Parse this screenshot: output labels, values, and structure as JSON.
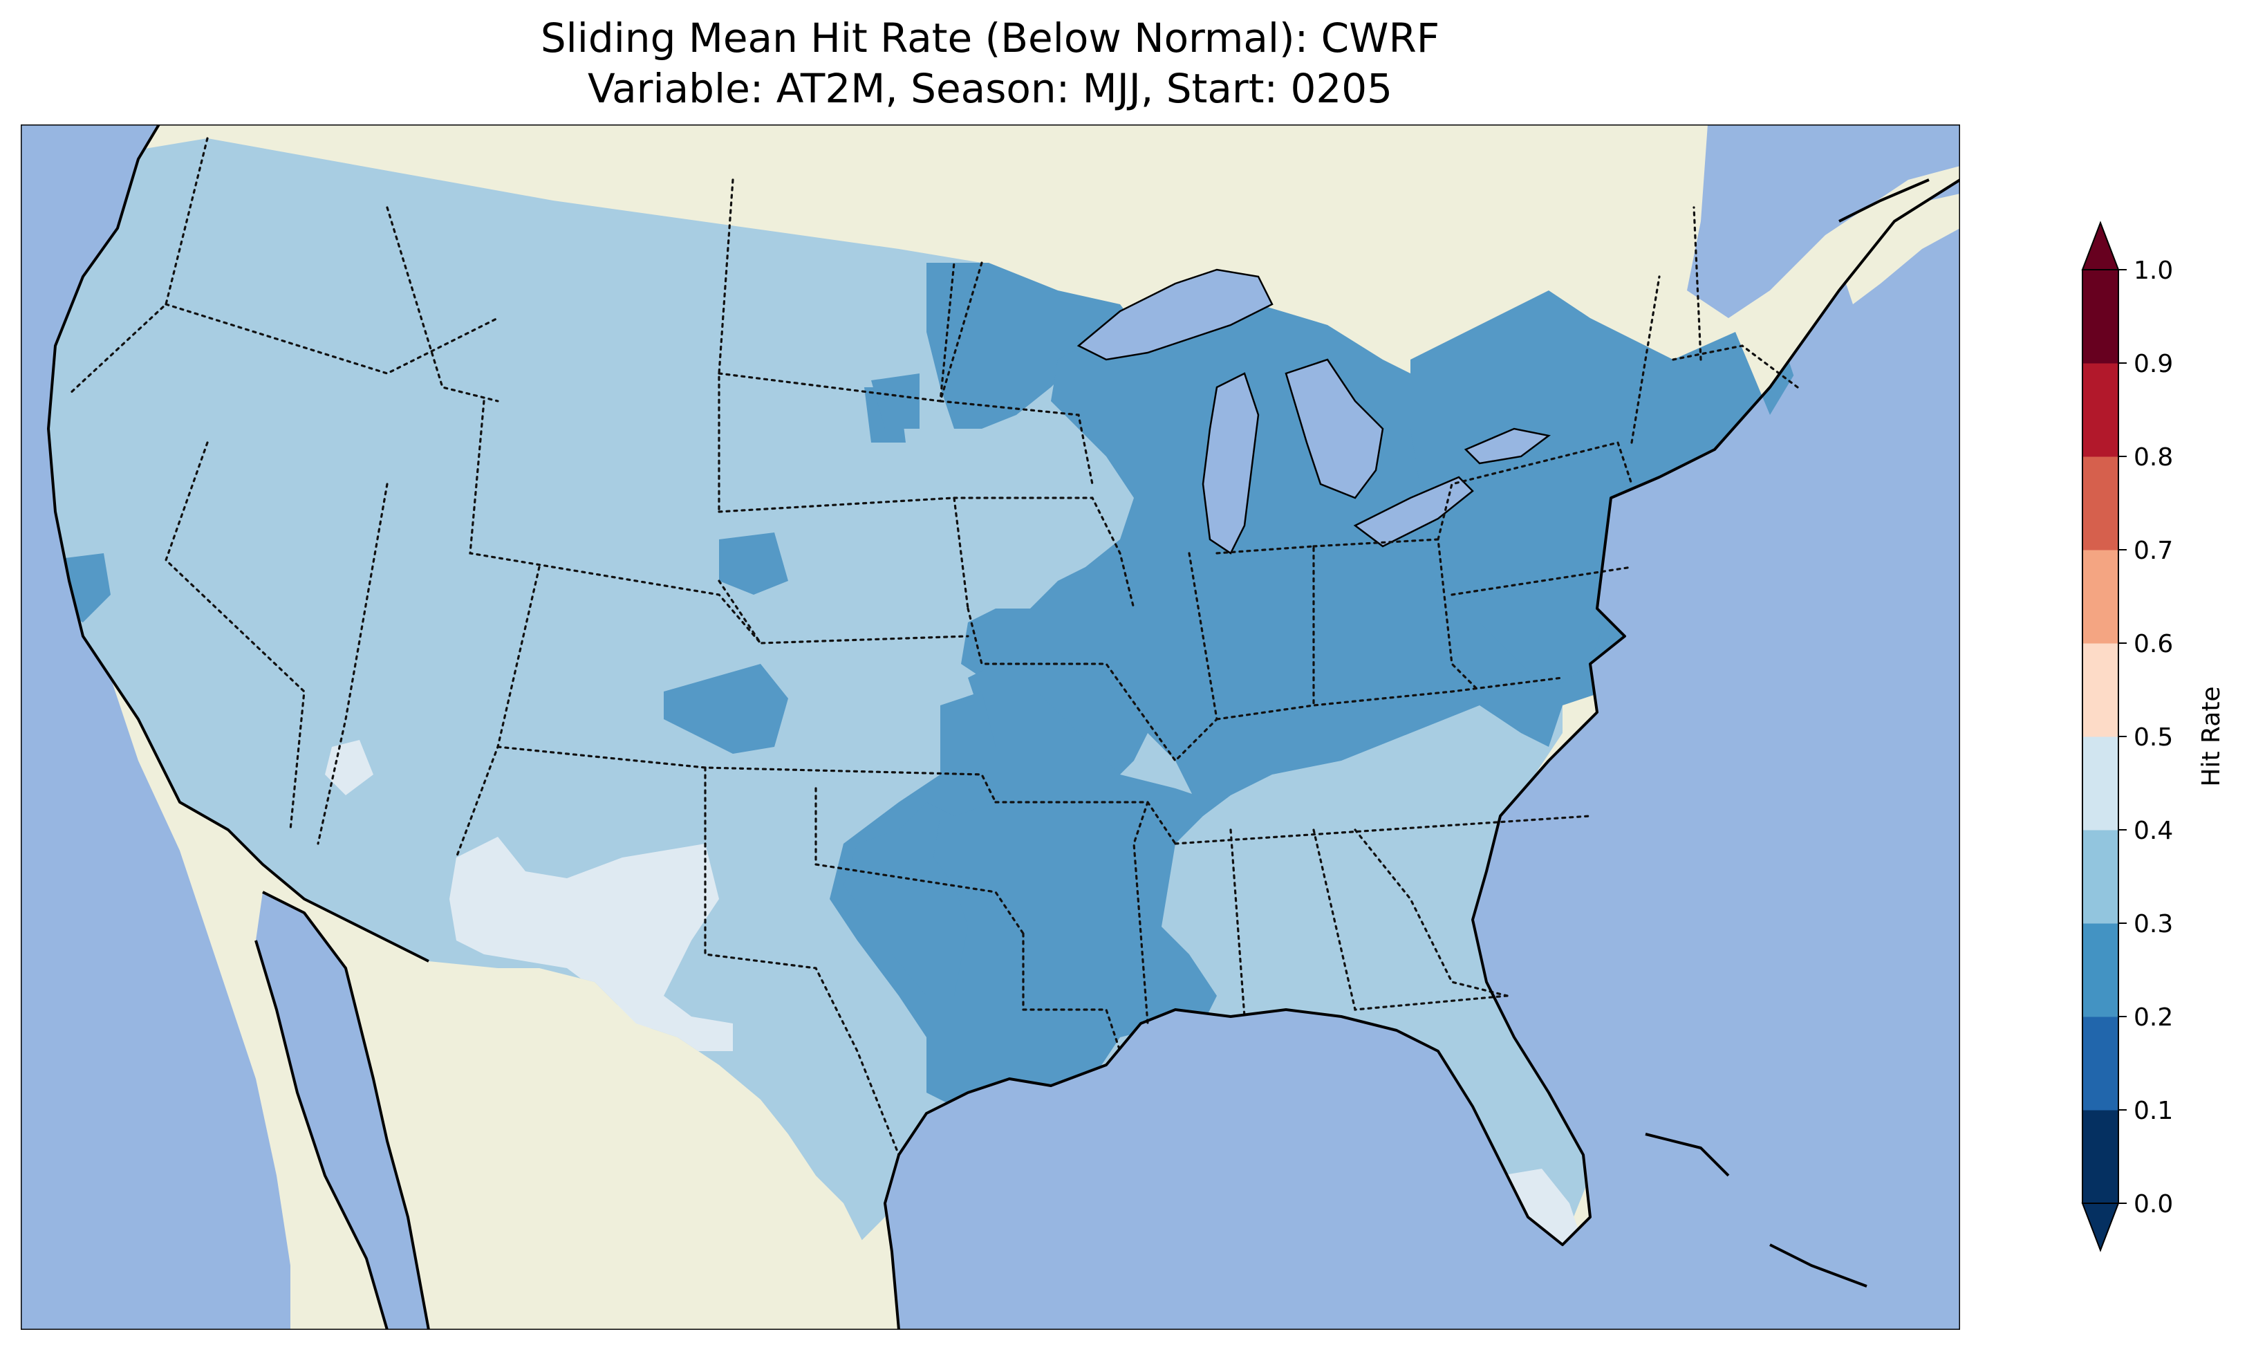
{
  "title": {
    "line1": "Sliding Mean Hit Rate (Below Normal): CWRF",
    "line2": "Variable: AT2M, Season: MJJ, Start: 0205"
  },
  "colorbar": {
    "label": "Hit Rate",
    "ticks": [
      "0.0",
      "0.1",
      "0.2",
      "0.3",
      "0.4",
      "0.5",
      "0.6",
      "0.7",
      "0.8",
      "0.9",
      "1.0"
    ],
    "bins": [
      {
        "range": [
          0.0,
          0.1
        ],
        "color": "#053061"
      },
      {
        "range": [
          0.1,
          0.2
        ],
        "color": "#2166ac"
      },
      {
        "range": [
          0.2,
          0.3
        ],
        "color": "#4393c3"
      },
      {
        "range": [
          0.3,
          0.4
        ],
        "color": "#92c5de"
      },
      {
        "range": [
          0.4,
          0.5
        ],
        "color": "#d1e5f0"
      },
      {
        "range": [
          0.5,
          0.6
        ],
        "color": "#fddbc7"
      },
      {
        "range": [
          0.6,
          0.7
        ],
        "color": "#f4a582"
      },
      {
        "range": [
          0.7,
          0.8
        ],
        "color": "#d6604d"
      },
      {
        "range": [
          0.8,
          0.9
        ],
        "color": "#b2182b"
      },
      {
        "range": [
          0.9,
          1.0
        ],
        "color": "#67001f"
      }
    ],
    "extend": "both"
  },
  "map": {
    "projection": "lambert-conformal",
    "extent": "CONUS",
    "ocean_color": "#97b6e1",
    "land_color": "#efefdb",
    "field_colors": {
      "0.2-0.3": "#5599c6",
      "0.3-0.4": "#a8cde2",
      "0.4-0.5": "#dfeaf2"
    },
    "regions": [
      {
        "name": "western-and-plains",
        "bin": "0.3-0.4"
      },
      {
        "name": "northern-minnesota",
        "bin": "0.2-0.3"
      },
      {
        "name": "great-lakes-ohio-valley",
        "bin": "0.2-0.3"
      },
      {
        "name": "northeast",
        "bin": "0.2-0.3"
      },
      {
        "name": "lower-mississippi-valley",
        "bin": "0.2-0.3"
      },
      {
        "name": "east-texas-oklahoma",
        "bin": "0.2-0.3"
      },
      {
        "name": "new-mexico-west-texas",
        "bin": "0.4-0.5"
      },
      {
        "name": "south-florida",
        "bin": "0.4-0.5"
      }
    ]
  }
}
